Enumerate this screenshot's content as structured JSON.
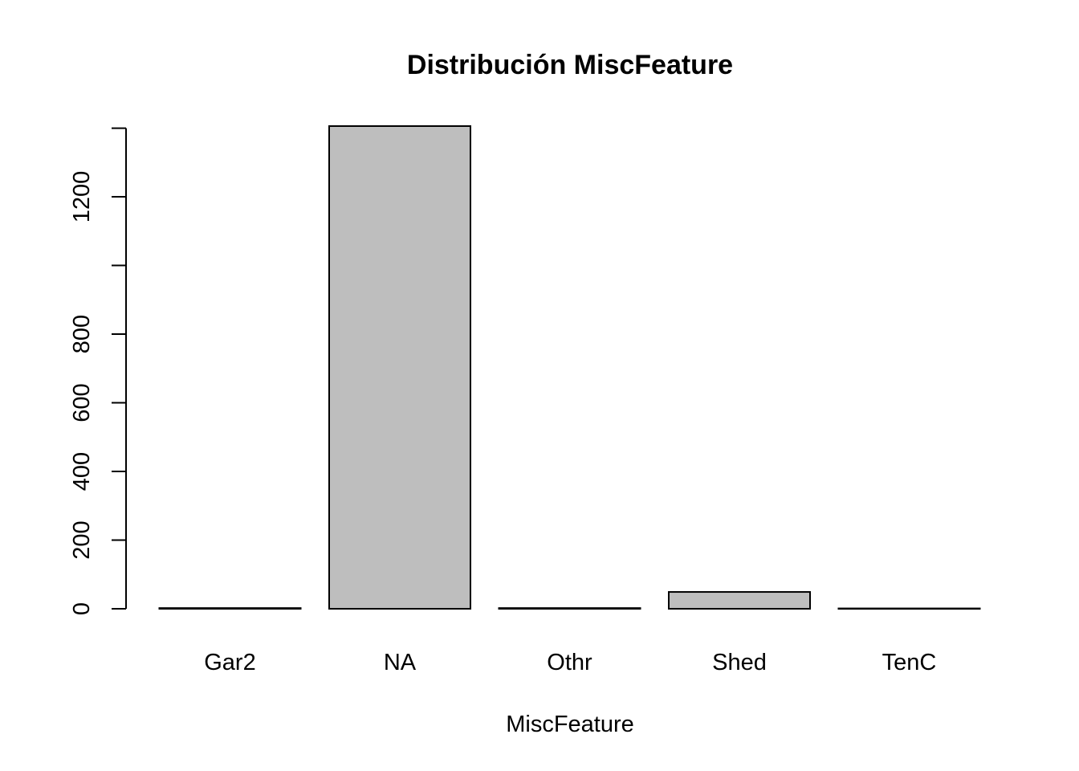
{
  "chart_data": {
    "type": "bar",
    "title": "Distribución MiscFeature",
    "xlabel": "MiscFeature",
    "ylabel": "",
    "categories": [
      "Gar2",
      "NA",
      "Othr",
      "Shed",
      "TenC"
    ],
    "values": [
      2,
      1406,
      2,
      49,
      1
    ],
    "ylim": [
      0,
      1406
    ],
    "yticks": [
      0,
      200,
      400,
      600,
      800,
      1000,
      1200,
      1400
    ],
    "ytick_labels": [
      "0",
      "200",
      "400",
      "600",
      "800",
      "",
      "1200",
      ""
    ],
    "bar_fill": "#bebebe",
    "bar_stroke": "#000000",
    "grid": false,
    "legend": "none"
  }
}
